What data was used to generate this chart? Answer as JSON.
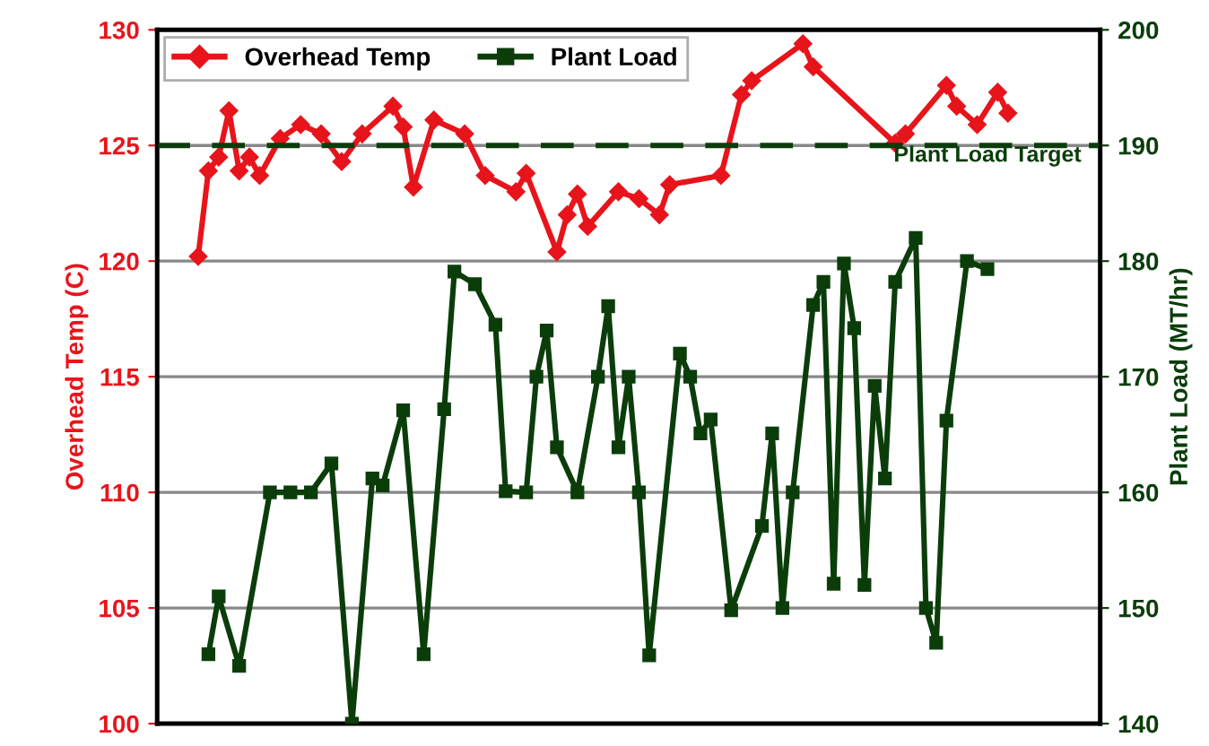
{
  "chart_data": {
    "type": "line",
    "ylabel": "Overhead Temp (C)",
    "y2label": "Plant Load (MT/hr)",
    "categories": [
      null,
      null,
      null,
      null,
      null,
      null,
      null,
      null,
      null,
      null,
      null,
      null,
      null,
      null,
      null,
      null,
      null,
      null,
      null,
      null,
      null,
      null,
      null,
      null,
      null,
      null,
      null,
      null,
      null,
      null,
      null,
      null,
      null,
      null,
      null,
      null,
      null,
      null,
      null,
      null,
      null,
      null,
      null,
      null,
      null,
      null,
      null,
      null,
      null,
      null,
      null,
      null,
      null,
      null,
      null,
      null,
      null,
      null,
      null,
      null,
      null,
      null,
      null,
      null,
      null,
      null,
      null,
      null,
      null,
      null,
      null,
      null,
      null,
      null,
      null,
      null,
      null,
      null,
      null,
      null
    ],
    "ylim": [
      100,
      130
    ],
    "yticks": [
      100,
      105,
      110,
      115,
      120,
      125,
      130
    ],
    "y2lim": [
      140,
      200
    ],
    "y2ticks": [
      140,
      150,
      160,
      170,
      180,
      190,
      200
    ],
    "grid": "y",
    "legend": "top left",
    "line_style": "solid",
    "series": [
      {
        "name": "Overhead Temp",
        "color": "#e8141b",
        "marker": "diamond",
        "values": [
          120.2,
          123.9,
          124.5,
          126.5,
          123.9,
          124.5,
          123.7,
          null,
          125.3,
          null,
          125.9,
          null,
          125.5,
          null,
          124.3,
          null,
          125.5,
          null,
          null,
          126.7,
          125.8,
          123.2,
          null,
          126.1,
          null,
          null,
          125.5,
          null,
          123.7,
          null,
          null,
          123.0,
          123.8,
          null,
          null,
          120.4,
          122.0,
          122.9,
          121.5,
          null,
          null,
          123.0,
          null,
          122.7,
          null,
          122.0,
          123.3,
          null,
          null,
          null,
          null,
          123.7,
          null,
          127.2,
          127.8,
          null,
          null,
          null,
          null,
          129.4,
          128.4,
          null,
          null,
          null,
          null,
          null,
          null,
          null,
          125.1,
          125.5,
          null,
          null,
          null,
          127.6,
          126.7,
          null,
          125.9,
          null,
          127.3,
          126.4
        ]
      },
      {
        "name": "Plant Load",
        "color": "#0b3d0b",
        "marker": "square",
        "axis": "y2",
        "values": [
          null,
          146,
          151,
          null,
          145,
          null,
          null,
          160,
          null,
          160,
          null,
          160,
          null,
          162.5,
          null,
          140,
          null,
          161.2,
          160.6,
          null,
          167.1,
          null,
          146,
          null,
          167.2,
          179.1,
          null,
          178,
          null,
          174.5,
          160.1,
          null,
          160,
          170,
          174,
          163.9,
          null,
          160,
          null,
          170,
          176.1,
          163.9,
          170,
          160,
          145.9,
          null,
          null,
          172,
          170,
          165.1,
          166.3,
          null,
          149.8,
          null,
          null,
          157.1,
          165.1,
          150,
          160,
          null,
          176.2,
          178.2,
          152.1,
          179.8,
          174.2,
          152,
          169.2,
          161.2,
          178.2,
          null,
          182,
          150,
          147,
          166.2,
          null,
          180,
          null,
          179.3,
          null,
          null
        ]
      }
    ],
    "ref_lines": [
      {
        "axis": "y2",
        "value": 190,
        "label": "Plant Load Target",
        "color": "#0b3d0b",
        "line_style": "dashed"
      }
    ]
  }
}
